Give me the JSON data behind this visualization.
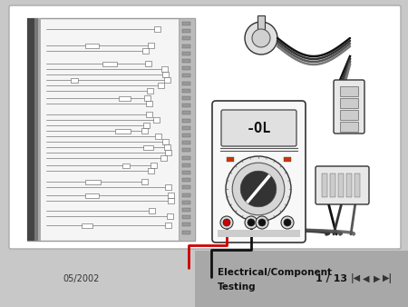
{
  "bg_color": "#c8c8c8",
  "slide_bg": "#ffffff",
  "slide_border_color": "#aaaaaa",
  "footer_left_color": "#c8c8c8",
  "footer_right_color": "#a8a8a8",
  "footer_curve_color": "#888888",
  "footer_text_date": "05/2002",
  "footer_title1": "Electrical/Component",
  "footer_title2": "Testing",
  "footer_page": "1 / 13",
  "wiring_bg": "#f5f5f5",
  "wiring_border": "#999999",
  "spine_dark": "#444444",
  "spine_mid": "#777777",
  "spine_light": "#aaaaaa",
  "holes_bg": "#bbbbbb",
  "mm_body": "#f8f8f8",
  "mm_border": "#333333",
  "mm_display_bg": "#e0e0e0",
  "mm_display_border": "#555555",
  "dial_outer": "#dddddd",
  "dial_inner": "#cccccc",
  "wire_color": "#222222",
  "probe_red": "#cc0000",
  "probe_black": "#111111"
}
